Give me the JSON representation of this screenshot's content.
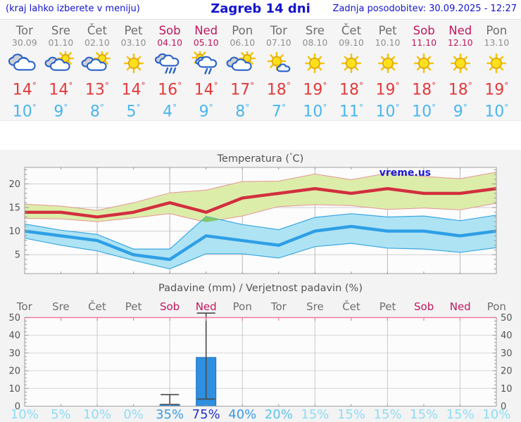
{
  "header": {
    "hint": "(kraj lahko izberete v meniju)",
    "title": "Zagreb 14 dni",
    "updated": "Zadnja posodobitev: 30.09.2025 - 12:27"
  },
  "degree_symbol": "°",
  "days": [
    {
      "name": "Tor",
      "date": "30.09",
      "weekend": false,
      "icon": "cloudy",
      "tmax": 14,
      "tmin": 10
    },
    {
      "name": "Sre",
      "date": "01.10",
      "weekend": false,
      "icon": "partly-sunny",
      "tmax": 14,
      "tmin": 9
    },
    {
      "name": "Čet",
      "date": "02.10",
      "weekend": false,
      "icon": "partly-sunny",
      "tmax": 13,
      "tmin": 8
    },
    {
      "name": "Pet",
      "date": "03.10",
      "weekend": false,
      "icon": "sunny",
      "tmax": 14,
      "tmin": 5
    },
    {
      "name": "Sob",
      "date": "04.10",
      "weekend": true,
      "icon": "rain",
      "tmax": 16,
      "tmin": 4
    },
    {
      "name": "Ned",
      "date": "05.10",
      "weekend": true,
      "icon": "sun-rain",
      "tmax": 14,
      "tmin": 9
    },
    {
      "name": "Pon",
      "date": "06.10",
      "weekend": false,
      "icon": "partly-sunny",
      "tmax": 17,
      "tmin": 8
    },
    {
      "name": "Tor",
      "date": "07.10",
      "weekend": false,
      "icon": "mostly-sunny",
      "tmax": 18,
      "tmin": 7
    },
    {
      "name": "Sre",
      "date": "08.10",
      "weekend": false,
      "icon": "sunny",
      "tmax": 19,
      "tmin": 10
    },
    {
      "name": "Čet",
      "date": "09.10",
      "weekend": false,
      "icon": "sunny",
      "tmax": 18,
      "tmin": 11
    },
    {
      "name": "Pet",
      "date": "10.10",
      "weekend": false,
      "icon": "sunny",
      "tmax": 19,
      "tmin": 10
    },
    {
      "name": "Sob",
      "date": "11.10",
      "weekend": true,
      "icon": "sunny",
      "tmax": 18,
      "tmin": 10
    },
    {
      "name": "Ned",
      "date": "12.10",
      "weekend": true,
      "icon": "sunny",
      "tmax": 18,
      "tmin": 9
    },
    {
      "name": "Pon",
      "date": "13.10",
      "weekend": false,
      "icon": "sunny",
      "tmax": 19,
      "tmin": 10
    }
  ],
  "chart_data": [
    {
      "type": "area",
      "title": "Temperatura (°C)",
      "watermark": "vreme.us",
      "x_categories": [
        "Tor",
        "Sre",
        "Čet",
        "Pet",
        "Sob",
        "Ned",
        "Pon",
        "Tor",
        "Sre",
        "Čet",
        "Pet",
        "Sob",
        "Ned",
        "Pon"
      ],
      "ylim": [
        1,
        23.5
      ],
      "yticks": [
        5,
        10,
        15,
        20
      ],
      "grid_vertical_day_index": [
        2,
        4,
        6,
        8,
        10,
        12
      ],
      "series": [
        {
          "name": "tmax",
          "values": [
            14,
            14,
            13,
            14,
            16,
            14,
            17,
            18,
            19,
            18,
            19,
            18,
            18,
            19
          ]
        },
        {
          "name": "tmax_band_upper",
          "values": [
            15.7,
            15.3,
            14.4,
            16.0,
            18.1,
            18.7,
            20.5,
            20.6,
            22.1,
            20.9,
            22.3,
            21.6,
            21.1,
            22.5
          ]
        },
        {
          "name": "tmax_band_lower",
          "values": [
            12.7,
            12.6,
            12.0,
            12.8,
            13.7,
            11.9,
            13.2,
            15.2,
            15.6,
            15.4,
            14.6,
            14.9,
            14.5,
            15.9
          ]
        },
        {
          "name": "tmin",
          "values": [
            10,
            9,
            8,
            5,
            4,
            9,
            8,
            7,
            10,
            11,
            10,
            10,
            9,
            10
          ]
        },
        {
          "name": "tmin_band_upper",
          "values": [
            11.5,
            10.2,
            9.3,
            6.2,
            6.2,
            13.1,
            11.4,
            10.3,
            12.9,
            13.7,
            13.0,
            13.2,
            12.2,
            13.4
          ]
        },
        {
          "name": "tmin_band_lower",
          "values": [
            8.5,
            7.0,
            5.8,
            3.8,
            2.0,
            5.2,
            5.2,
            4.3,
            6.7,
            7.4,
            6.4,
            6.2,
            5.5,
            6.5
          ]
        }
      ]
    },
    {
      "type": "bar",
      "title": "Padavine (mm) / Verjetnost padavin (%)",
      "ylim": [
        0,
        50
      ],
      "yticks": [
        0,
        10,
        20,
        30,
        40,
        50
      ],
      "grid_vertical_day_index": [
        2,
        4,
        6,
        8,
        10,
        12
      ],
      "bars": [
        {
          "day_index": 4,
          "day": "Sob",
          "value": 1,
          "whisker_low": 1,
          "whisker_high": 6.5
        },
        {
          "day_index": 5,
          "day": "Ned",
          "value": 27.5,
          "whisker_low": 4,
          "whisker_high": 52.5
        }
      ],
      "probabilities": [
        10,
        5,
        10,
        0,
        35,
        75,
        40,
        20,
        15,
        15,
        15,
        15,
        15,
        10
      ]
    }
  ],
  "colors": {
    "header_blue": "#1414cc",
    "weekend": "#c0175d",
    "weekday": "#6e6e6e",
    "date_gray": "#8f8f8f",
    "tmax_red": "#e23b3b",
    "tmin_blue": "#4ab5ee",
    "temp_line_max": "#d22f3e",
    "temp_band_max_fill": "#dcedaa",
    "temp_band_max_edge": "#e59595",
    "temp_line_min": "#2e9fe6",
    "temp_band_min_fill": "#aee3f4",
    "temp_band_min_edge": "#3aa8e0",
    "band_overlap": "#84c768",
    "watermark_blue": "#1a1ad2",
    "bar_fill": "#2f8fe0",
    "bar_edge": "#1b6fc0",
    "whisker": "#4a4a4a",
    "axis_pink": "#ee7f9a",
    "axis_gray": "#a0a0a0",
    "grid_gray": "#cfcfcf",
    "prob_low": "#8fdcf2",
    "prob_mid": "#5cc4ea",
    "prob_high": "#3b9be2",
    "prob_very_high": "#2531c8"
  }
}
